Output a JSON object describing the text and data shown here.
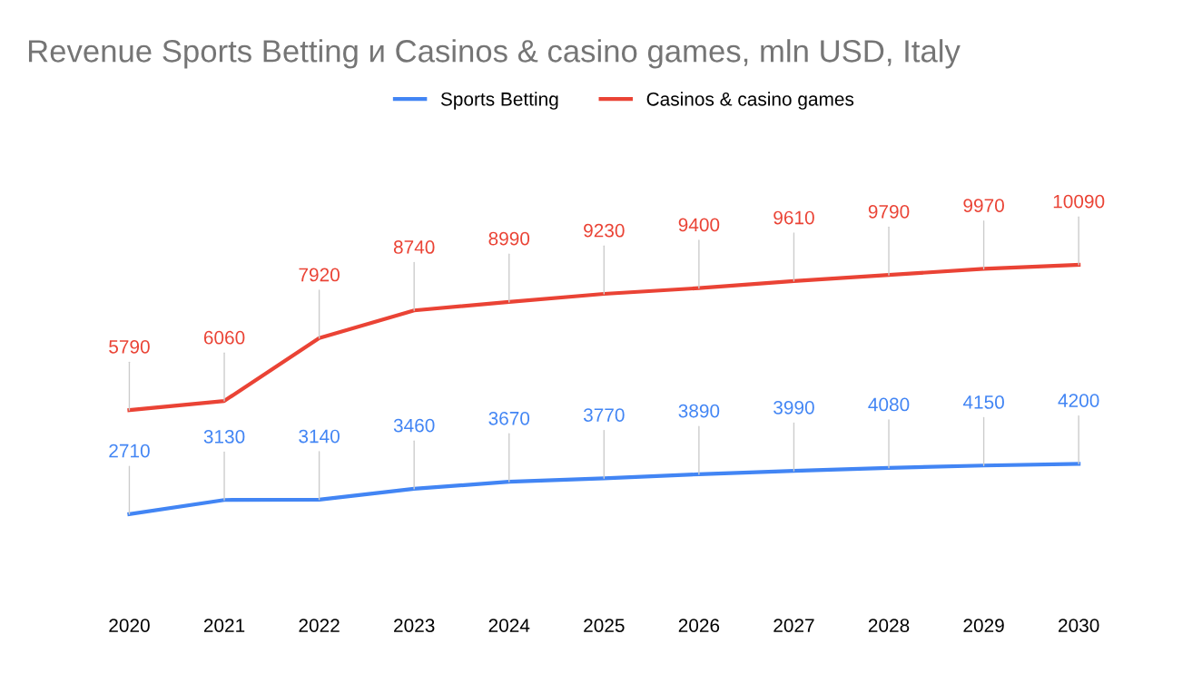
{
  "chart_data": {
    "type": "line",
    "title": "Revenue Sports Betting и Casinos & casino games, mln USD, Italy",
    "categories": [
      "2020",
      "2021",
      "2022",
      "2023",
      "2024",
      "2025",
      "2026",
      "2027",
      "2028",
      "2029",
      "2030"
    ],
    "series": [
      {
        "name": "Sports Betting",
        "color": "#4285f4",
        "values": [
          2710,
          3130,
          3140,
          3460,
          3670,
          3770,
          3890,
          3990,
          4080,
          4150,
          4200
        ]
      },
      {
        "name": "Casinos & casino games",
        "color": "#ea4335",
        "values": [
          5790,
          6060,
          7920,
          8740,
          8990,
          9230,
          9400,
          9610,
          9790,
          9970,
          10090
        ]
      }
    ],
    "data_labels": true,
    "legend": "top",
    "grid": false,
    "marker": "none",
    "line_style": "solid",
    "tick_labels": "x"
  }
}
